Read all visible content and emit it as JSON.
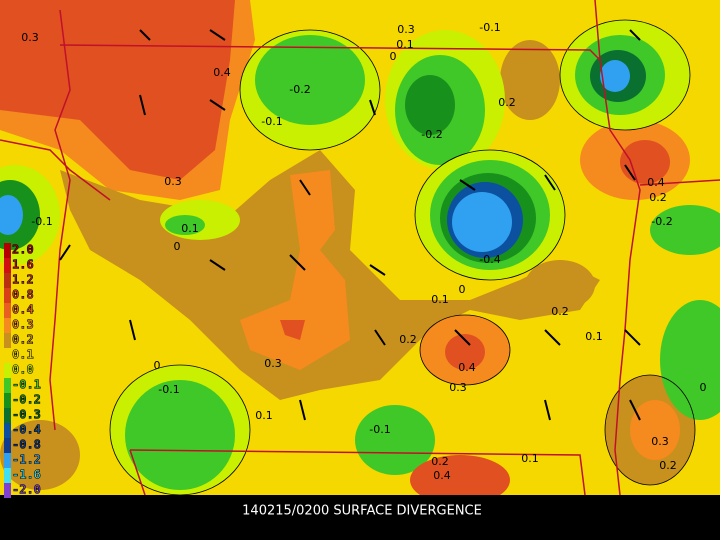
{
  "caption": "140215/0200 SURFACE DIVERGENCE",
  "legend": [
    {
      "label": "2.0",
      "color": "#b40000"
    },
    {
      "label": "1.6",
      "color": "#d01010"
    },
    {
      "label": "1.2",
      "color": "#b83010"
    },
    {
      "label": "0.8",
      "color": "#d84018"
    },
    {
      "label": "0.4",
      "color": "#e86020"
    },
    {
      "label": "0.3",
      "color": "#f58a1f"
    },
    {
      "label": "0.2",
      "color": "#c8901c"
    },
    {
      "label": "0.1",
      "color": "#f5d800"
    },
    {
      "label": "0.0",
      "color": "#c8f000"
    },
    {
      "label": "-0.1",
      "color": "#40c828"
    },
    {
      "label": "-0.2",
      "color": "#18901c"
    },
    {
      "label": "-0.3",
      "color": "#0a7030"
    },
    {
      "label": "-0.4",
      "color": "#0c50a0"
    },
    {
      "label": "-0.8",
      "color": "#103c90"
    },
    {
      "label": "-1.2",
      "color": "#30a0f0"
    },
    {
      "label": "-1.6",
      "color": "#40e0f0"
    },
    {
      "label": "-2.0",
      "color": "#8040d0"
    }
  ],
  "contour_labels": [
    "0.3",
    "0.4",
    "0.3",
    "0.1",
    "0",
    "-0.1",
    "-0.2",
    "-0.1",
    "-0.2",
    "0.2",
    "0.3",
    "0.1",
    "0",
    "-0.1",
    "0.1",
    "0",
    "-0.4",
    "0.2",
    "0.1",
    "0.2",
    "0.3",
    "0.4",
    "0.3",
    "0",
    "-0.1",
    "0.1",
    "-0.1",
    "0.1",
    "0.3",
    "0.2",
    "0",
    "0.2",
    "-0.2",
    "0.4",
    "0.2",
    "0.4"
  ]
}
